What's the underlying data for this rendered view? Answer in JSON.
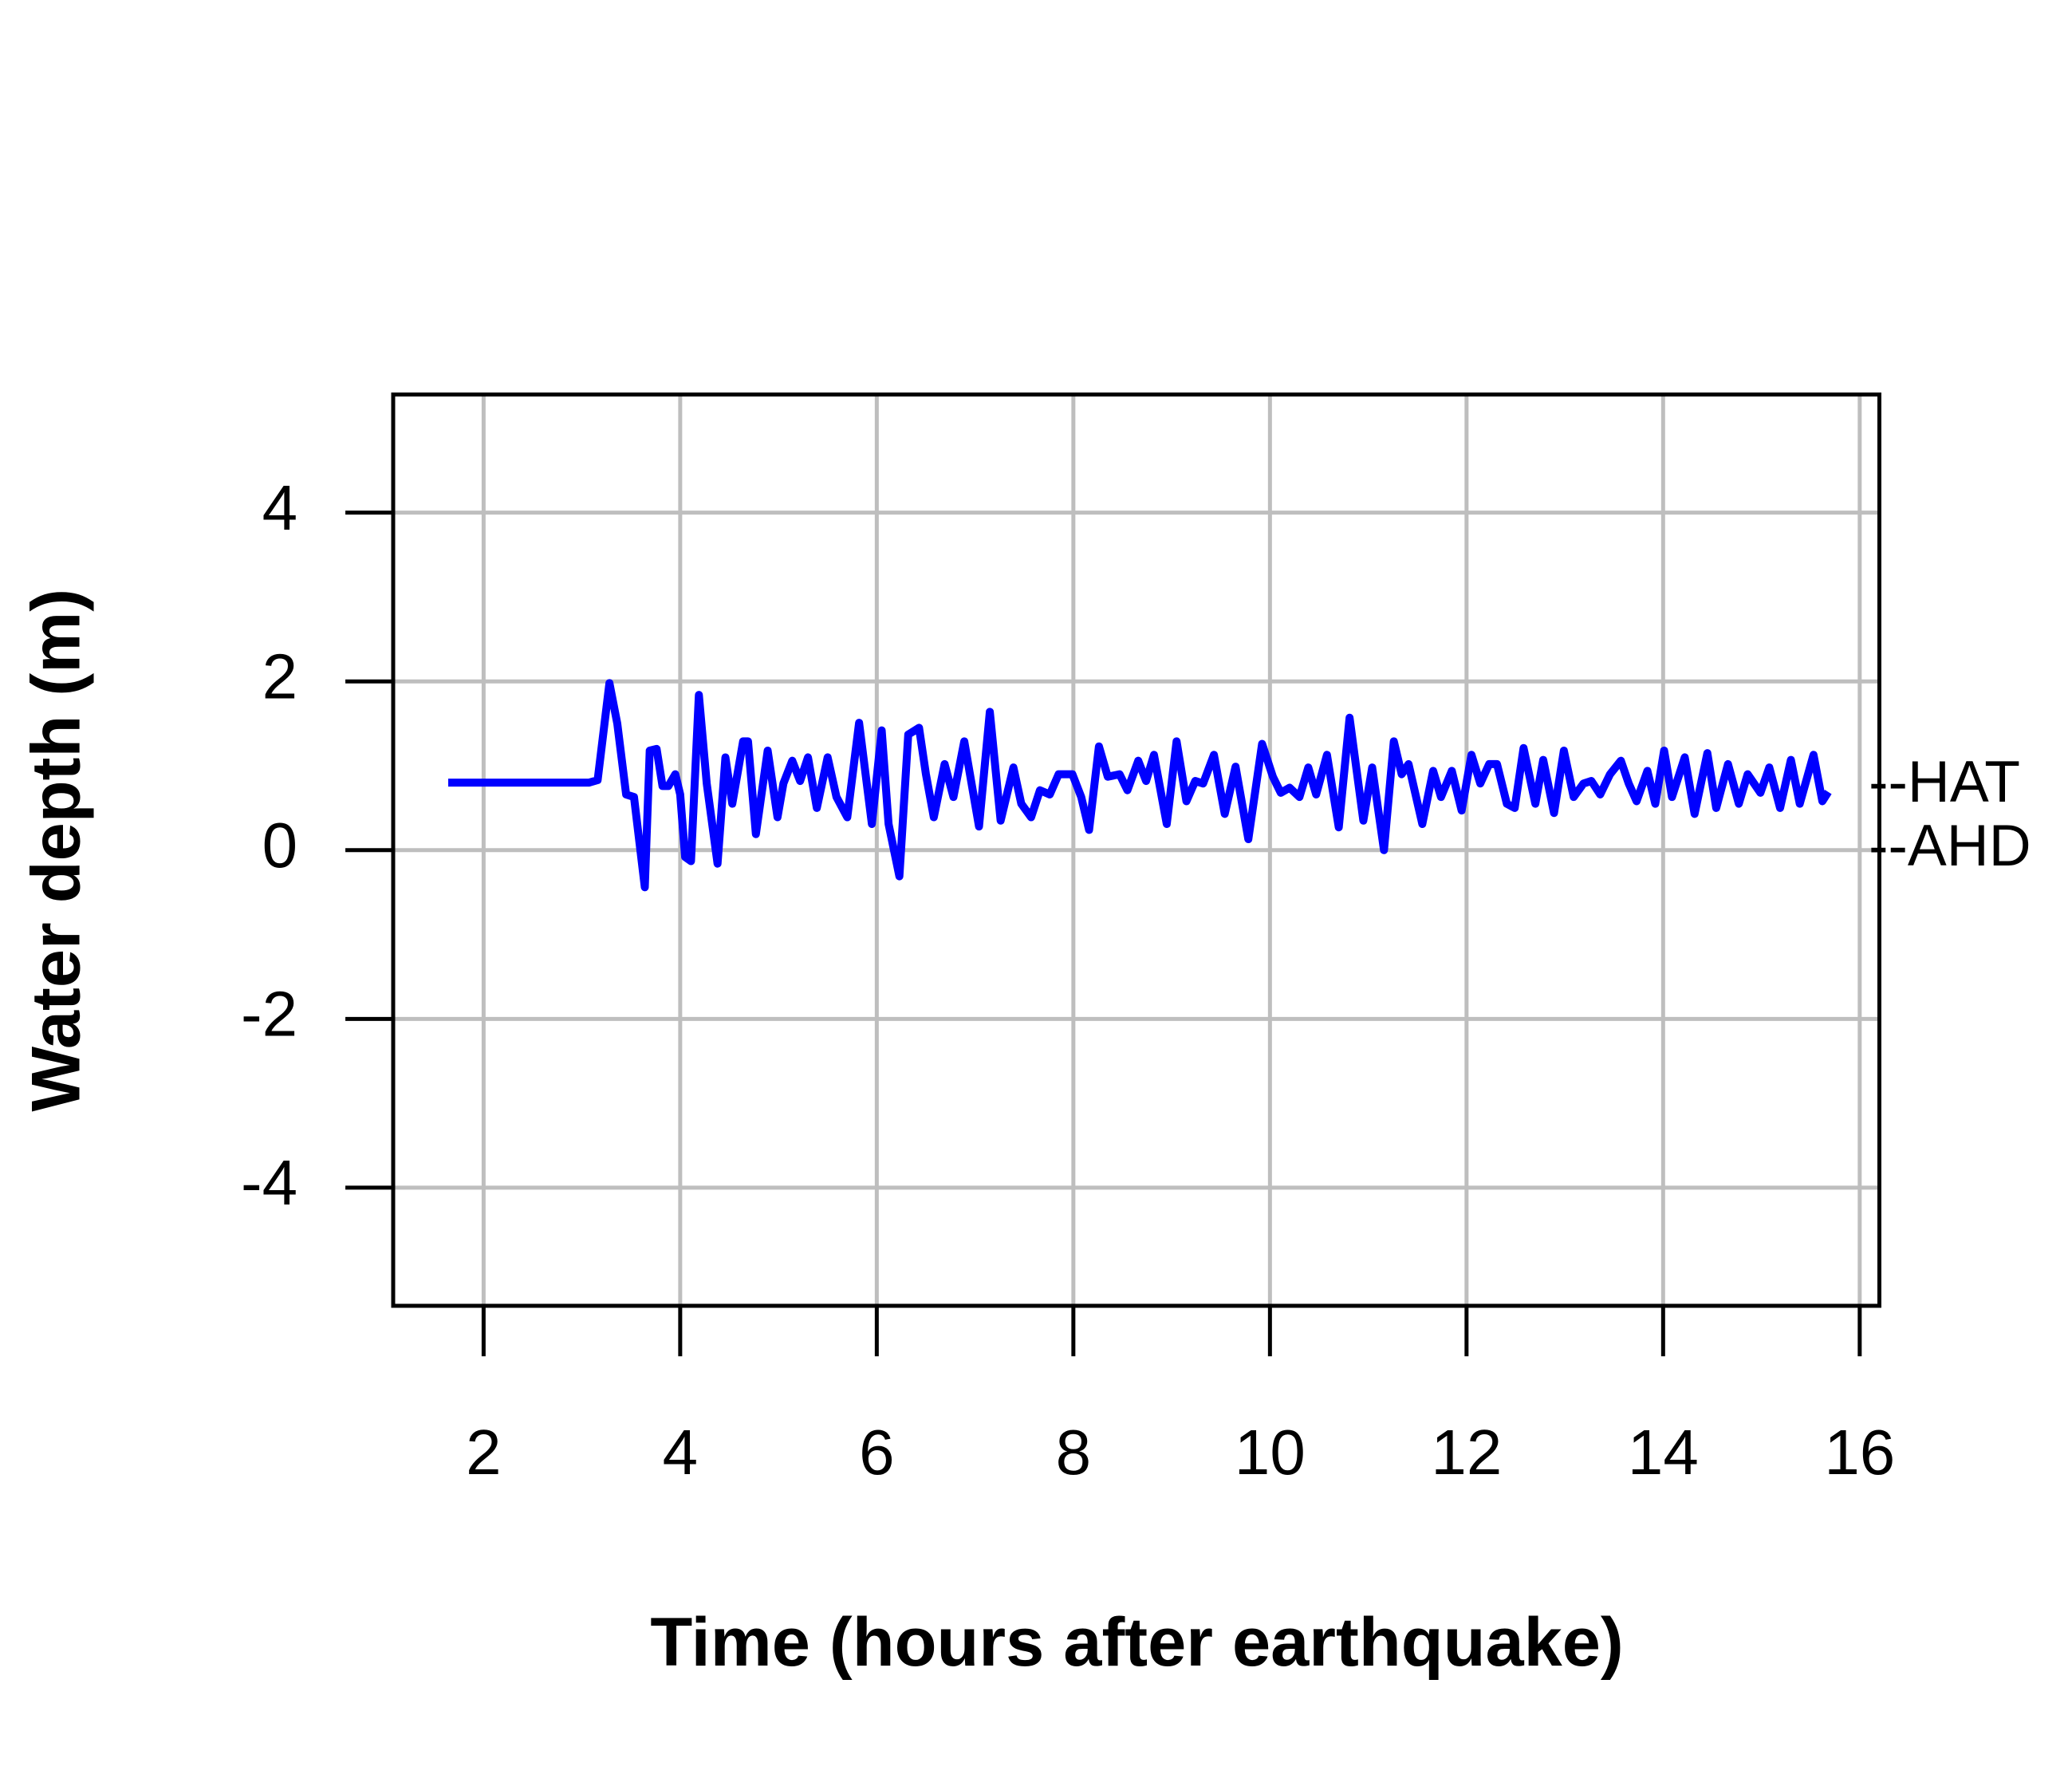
{
  "chart_data": {
    "type": "line",
    "xlabel": "Time (hours after earthquake)",
    "ylabel": "Water depth (m)",
    "xlim": [
      1.08,
      16.2
    ],
    "ylim": [
      -5.4,
      5.4
    ],
    "xticks": [
      2,
      4,
      6,
      8,
      10,
      12,
      14,
      16
    ],
    "yticks": [
      -4,
      -2,
      0,
      2,
      4
    ],
    "grid": true,
    "annotations": [
      {
        "text": "--HAT",
        "value": 0.76
      },
      {
        "text": "--AHD",
        "value": 0
      }
    ],
    "series": [
      {
        "color": "#0000ff",
        "x": [
          1.64,
          3.07,
          3.16,
          3.28,
          3.36,
          3.45,
          3.53,
          3.64,
          3.69,
          3.76,
          3.82,
          3.88,
          3.95,
          4.0,
          4.05,
          4.11,
          4.19,
          4.27,
          4.38,
          4.46,
          4.53,
          4.64,
          4.69,
          4.77,
          4.89,
          4.99,
          5.05,
          5.14,
          5.22,
          5.3,
          5.39,
          5.5,
          5.59,
          5.7,
          5.82,
          5.95,
          6.05,
          6.12,
          6.23,
          6.32,
          6.43,
          6.5,
          6.58,
          6.69,
          6.78,
          6.89,
          7.04,
          7.15,
          7.26,
          7.39,
          7.47,
          7.57,
          7.66,
          7.76,
          7.85,
          7.99,
          8.08,
          8.16,
          8.26,
          8.35,
          8.47,
          8.55,
          8.66,
          8.74,
          8.82,
          8.95,
          9.05,
          9.15,
          9.24,
          9.32,
          9.43,
          9.54,
          9.65,
          9.78,
          9.92,
          10.03,
          10.11,
          10.2,
          10.3,
          10.39,
          10.47,
          10.58,
          10.7,
          10.81,
          10.95,
          11.04,
          11.16,
          11.26,
          11.34,
          11.41,
          11.55,
          11.66,
          11.74,
          11.85,
          11.95,
          12.05,
          12.14,
          12.23,
          12.31,
          12.41,
          12.49,
          12.58,
          12.7,
          12.78,
          12.89,
          12.99,
          13.09,
          13.19,
          13.27,
          13.36,
          13.46,
          13.57,
          13.65,
          13.73,
          13.84,
          13.92,
          14.01,
          14.09,
          14.22,
          14.32,
          14.45,
          14.54,
          14.66,
          14.77,
          14.86,
          14.99,
          15.08,
          15.19,
          15.3,
          15.39,
          15.53,
          15.62,
          15.68
        ],
        "values": [
          0.8,
          0.8,
          0.83,
          1.98,
          1.5,
          0.66,
          0.63,
          -0.44,
          1.18,
          1.2,
          0.76,
          0.76,
          0.9,
          0.66,
          -0.08,
          -0.13,
          1.84,
          0.79,
          -0.16,
          1.1,
          0.55,
          1.29,
          1.29,
          0.19,
          1.18,
          0.39,
          0.79,
          1.06,
          0.82,
          1.1,
          0.5,
          1.1,
          0.63,
          0.39,
          1.51,
          0.31,
          1.42,
          0.31,
          -0.31,
          1.37,
          1.45,
          0.9,
          0.39,
          1.02,
          0.63,
          1.29,
          0.28,
          1.64,
          0.35,
          0.98,
          0.55,
          0.39,
          0.71,
          0.66,
          0.9,
          0.9,
          0.63,
          0.24,
          1.23,
          0.87,
          0.9,
          0.71,
          1.06,
          0.82,
          1.13,
          0.31,
          1.29,
          0.58,
          0.82,
          0.79,
          1.13,
          0.43,
          0.99,
          0.13,
          1.26,
          0.87,
          0.68,
          0.74,
          0.63,
          0.98,
          0.66,
          1.13,
          0.27,
          1.57,
          0.35,
          0.98,
          0,
          1.29,
          0.9,
          1.02,
          0.31,
          0.94,
          0.63,
          0.94,
          0.47,
          1.13,
          0.79,
          1.02,
          1.02,
          0.55,
          0.5,
          1.21,
          0.55,
          1.07,
          0.44,
          1.18,
          0.63,
          0.79,
          0.82,
          0.66,
          0.9,
          1.06,
          0.79,
          0.58,
          0.94,
          0.55,
          1.18,
          0.63,
          1.1,
          0.43,
          1.15,
          0.5,
          1.02,
          0.55,
          0.9,
          0.68,
          0.98,
          0.5,
          1.07,
          0.55,
          1.13,
          0.58,
          0.69
        ]
      }
    ]
  }
}
